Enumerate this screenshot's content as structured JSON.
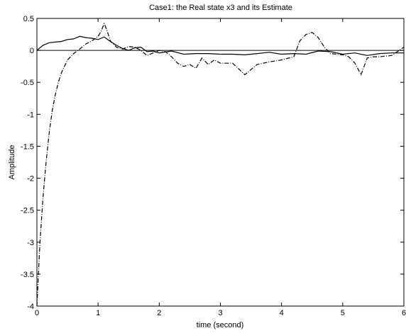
{
  "chart_data": {
    "type": "line",
    "title": "Case1: the Real state x3 and its Estimate",
    "xlabel": "time (second)",
    "ylabel": "Amplitude",
    "xlim": [
      0,
      6
    ],
    "ylim": [
      -4,
      0.5
    ],
    "grid": false,
    "x_ticks": [
      "0",
      "1",
      "2",
      "3",
      "4",
      "5",
      "6"
    ],
    "y_ticks": [
      "0.5",
      "0",
      "-0.5",
      "-1",
      "-1.5",
      "-2",
      "-2.5",
      "-3",
      "-3.5",
      "-4"
    ],
    "x_tick_values": [
      0,
      1,
      2,
      3,
      4,
      5,
      6
    ],
    "y_tick_values": [
      0.5,
      0,
      -0.5,
      -1,
      -1.5,
      -2,
      -2.5,
      -3,
      -3.5,
      -4
    ],
    "series": [
      {
        "style": "solid",
        "color": "#000000",
        "x": [
          0,
          0.1,
          0.2,
          0.3,
          0.4,
          0.5,
          0.6,
          0.7,
          0.8,
          0.9,
          1.0,
          1.1,
          1.2,
          1.3,
          1.4,
          1.5,
          1.6,
          1.7,
          1.8,
          1.9,
          2.0,
          2.2,
          2.4,
          2.6,
          2.8,
          3.0,
          3.2,
          3.4,
          3.6,
          3.8,
          4.0,
          4.2,
          4.4,
          4.6,
          4.8,
          5.0,
          5.2,
          5.4,
          5.6,
          5.8,
          6.0
        ],
        "y": [
          0.0,
          0.08,
          0.12,
          0.13,
          0.14,
          0.17,
          0.18,
          0.22,
          0.2,
          0.19,
          0.17,
          0.21,
          0.14,
          0.08,
          0.03,
          0.0,
          0.04,
          0.05,
          -0.02,
          -0.01,
          -0.04,
          -0.01,
          -0.06,
          -0.05,
          -0.05,
          -0.06,
          -0.06,
          -0.07,
          -0.05,
          -0.03,
          -0.06,
          -0.05,
          -0.06,
          -0.01,
          -0.02,
          -0.06,
          -0.04,
          -0.08,
          -0.05,
          -0.04,
          -0.04
        ]
      },
      {
        "style": "dashed",
        "color": "#000000",
        "x": [
          0,
          0.02,
          0.05,
          0.1,
          0.15,
          0.2,
          0.25,
          0.3,
          0.35,
          0.4,
          0.45,
          0.5,
          0.6,
          0.7,
          0.8,
          0.9,
          1.0,
          1.05,
          1.1,
          1.15,
          1.2,
          1.3,
          1.4,
          1.5,
          1.6,
          1.7,
          1.8,
          1.9,
          2.0,
          2.1,
          2.2,
          2.3,
          2.4,
          2.5,
          2.6,
          2.7,
          2.8,
          2.9,
          3.0,
          3.2,
          3.4,
          3.6,
          3.8,
          4.0,
          4.2,
          4.3,
          4.4,
          4.5,
          4.6,
          4.7,
          4.8,
          5.0,
          5.1,
          5.2,
          5.3,
          5.35,
          5.4,
          5.5,
          5.6,
          5.8,
          6.0
        ],
        "y": [
          -4.0,
          -3.6,
          -3.0,
          -2.3,
          -1.75,
          -1.3,
          -0.95,
          -0.7,
          -0.5,
          -0.35,
          -0.25,
          -0.15,
          -0.05,
          0.02,
          0.1,
          0.15,
          0.22,
          0.3,
          0.42,
          0.3,
          0.15,
          0.05,
          0.02,
          0.06,
          0.05,
          0.0,
          -0.08,
          -0.04,
          0.0,
          -0.02,
          -0.1,
          -0.2,
          -0.25,
          -0.22,
          -0.28,
          -0.12,
          -0.22,
          -0.15,
          -0.2,
          -0.2,
          -0.38,
          -0.22,
          -0.18,
          -0.15,
          -0.1,
          0.15,
          0.25,
          0.28,
          0.2,
          0.05,
          -0.05,
          -0.07,
          -0.1,
          -0.2,
          -0.38,
          -0.25,
          -0.12,
          -0.1,
          -0.1,
          -0.08,
          0.05
        ]
      }
    ]
  }
}
